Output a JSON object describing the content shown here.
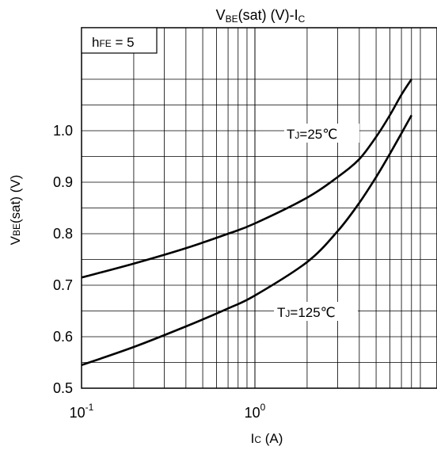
{
  "chart_data": {
    "type": "line",
    "title": {
      "main": "V",
      "sub": "BE",
      "rest": "(sat) (V)-I",
      "sub2": "C"
    },
    "xlabel": {
      "main": "I",
      "sub": "C",
      "rest": " (A)"
    },
    "ylabel": {
      "main": "V",
      "sub": "BE",
      "rest": "(sat)  (V)"
    },
    "x_scale": "log",
    "xlim": [
      0.1,
      10
    ],
    "ylim": [
      0.5,
      1.1
    ],
    "grid": true,
    "x_ticks": [
      {
        "base": "10",
        "exp": "-1"
      },
      {
        "base": "10",
        "exp": "0"
      }
    ],
    "y_ticks": [
      "0.5",
      "0.6",
      "0.7",
      "0.8",
      "0.9",
      "1.0"
    ],
    "annotation": {
      "main": "h",
      "sub": "FE",
      "rest": " = 5"
    },
    "series": [
      {
        "name": "TJ=25℃",
        "label": {
          "main": "T",
          "sub": "J",
          "rest": "=25℃"
        },
        "x": [
          0.1,
          0.2,
          0.4,
          0.7,
          1.0,
          2.0,
          3.0,
          4.0,
          5.0,
          6.0,
          7.0,
          8.0
        ],
        "y": [
          0.715,
          0.742,
          0.772,
          0.8,
          0.82,
          0.87,
          0.91,
          0.945,
          0.988,
          1.03,
          1.07,
          1.1
        ]
      },
      {
        "name": "TJ=125℃",
        "label": {
          "main": "T",
          "sub": "J",
          "rest": "=125℃"
        },
        "x": [
          0.1,
          0.2,
          0.4,
          0.7,
          1.0,
          2.0,
          3.0,
          4.0,
          5.0,
          6.0,
          7.0,
          8.0
        ],
        "y": [
          0.545,
          0.58,
          0.62,
          0.655,
          0.68,
          0.745,
          0.805,
          0.86,
          0.91,
          0.955,
          0.995,
          1.03
        ]
      }
    ]
  }
}
